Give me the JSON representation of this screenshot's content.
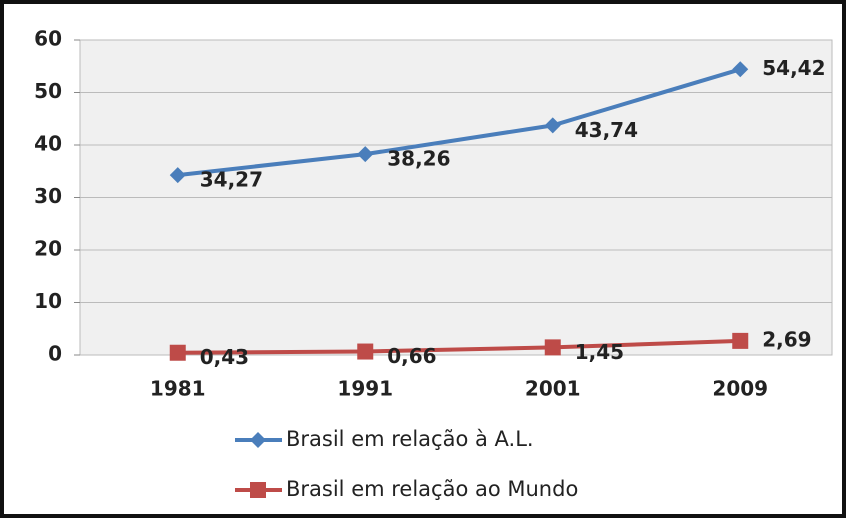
{
  "chart_data": {
    "type": "line",
    "categories": [
      "1981",
      "1991",
      "2001",
      "2009"
    ],
    "series": [
      {
        "name": "Brasil em relação à A.L.",
        "color": "#4a7ebb",
        "marker": "diamond",
        "values": [
          34.27,
          38.26,
          43.74,
          54.42
        ],
        "value_labels": [
          "34,27",
          "38,26",
          "43,74",
          "54,42"
        ]
      },
      {
        "name": "Brasil em relação ao Mundo",
        "color": "#be4b48",
        "marker": "square",
        "values": [
          0.43,
          0.66,
          1.45,
          2.69
        ],
        "value_labels": [
          "0,43",
          "0,66",
          "1,45",
          "2,69"
        ]
      }
    ],
    "ylim": [
      0,
      60
    ],
    "yticks": [
      0,
      10,
      20,
      30,
      40,
      50,
      60
    ],
    "grid": true,
    "legend": "bottom"
  }
}
